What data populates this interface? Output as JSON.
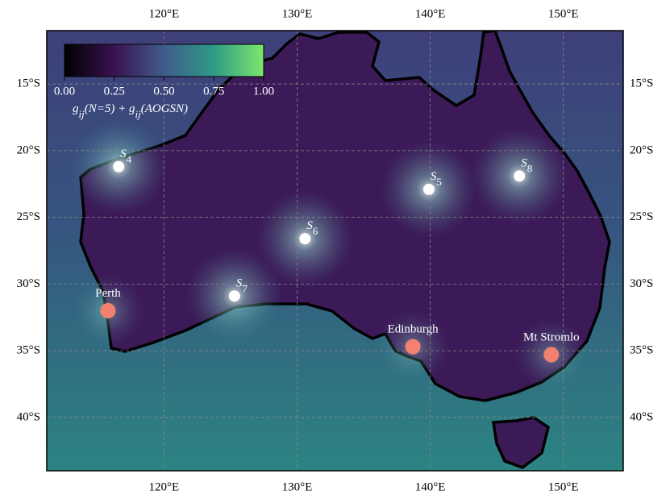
{
  "chart_data": {
    "type": "map",
    "xlim": [
      111.2,
      154.5
    ],
    "ylim": [
      -44.0,
      -11.0
    ],
    "xticks": [
      {
        "value": 120,
        "label": "120°E"
      },
      {
        "value": 130,
        "label": "130°E"
      },
      {
        "value": 140,
        "label": "140°E"
      },
      {
        "value": 150,
        "label": "150°E"
      }
    ],
    "yticks": [
      {
        "value": -15,
        "label": "15°S"
      },
      {
        "value": -20,
        "label": "20°S"
      },
      {
        "value": -25,
        "label": "25°S"
      },
      {
        "value": -30,
        "label": "30°S"
      },
      {
        "value": -35,
        "label": "35°S"
      },
      {
        "value": -40,
        "label": "40°S"
      }
    ],
    "grid": true,
    "colorbar": {
      "clim": [
        0,
        1
      ],
      "ticks": [
        {
          "value": 0,
          "label": "0.00"
        },
        {
          "value": 0.25,
          "label": "0.25"
        },
        {
          "value": 0.5,
          "label": "0.50"
        },
        {
          "value": 0.75,
          "label": "0.75"
        },
        {
          "value": 1,
          "label": "1.00"
        }
      ],
      "label_parts": [
        "g",
        "ij",
        "(N=5) + g",
        "ij",
        "(AOGSN)"
      ]
    },
    "stations": [
      {
        "symbol": "S",
        "index": "4",
        "lon": 116.6,
        "lat": -21.2
      },
      {
        "symbol": "S",
        "index": "5",
        "lon": 139.9,
        "lat": -22.9
      },
      {
        "symbol": "S",
        "index": "6",
        "lon": 130.6,
        "lat": -26.6
      },
      {
        "symbol": "S",
        "index": "7",
        "lon": 125.3,
        "lat": -30.9
      },
      {
        "symbol": "S",
        "index": "8",
        "lon": 146.7,
        "lat": -21.9
      }
    ],
    "station_color": "#ffffff",
    "sites": [
      {
        "name": "Perth",
        "lon": 115.8,
        "lat": -32.0
      },
      {
        "name": "Edinburgh",
        "lon": 138.7,
        "lat": -34.7
      },
      {
        "name": "Mt Stromlo",
        "lon": 149.1,
        "lat": -35.3
      }
    ],
    "site_color": "#f4806f"
  }
}
